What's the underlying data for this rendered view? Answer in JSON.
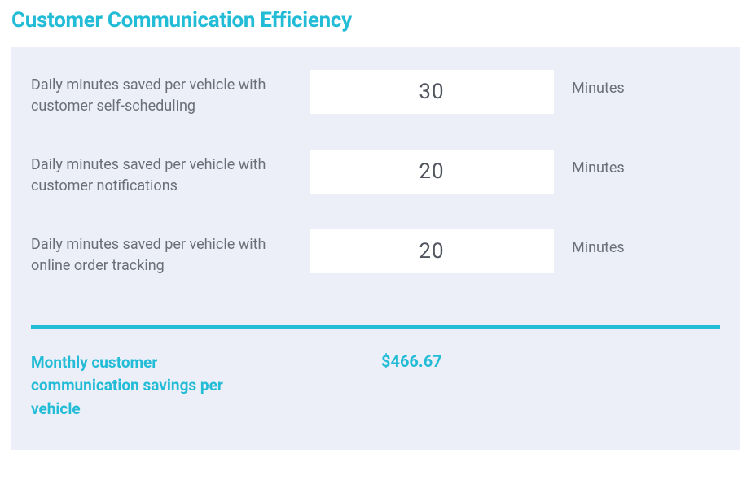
{
  "title": "Customer Communication Efficiency",
  "rows": [
    {
      "label": "Daily minutes saved per vehicle with customer self-scheduling",
      "value": "30",
      "unit": "Minutes"
    },
    {
      "label": "Daily minutes saved per vehicle with customer notifications",
      "value": "20",
      "unit": "Minutes"
    },
    {
      "label": "Daily minutes saved per vehicle with online order tracking",
      "value": "20",
      "unit": "Minutes"
    }
  ],
  "summary": {
    "label": "Monthly customer communication savings per vehicle",
    "value": "$466.67"
  },
  "colors": {
    "accent": "#23bcd6",
    "panel_bg": "#eceff7",
    "text_muted": "#6a6f7a",
    "value_text": "#50555e",
    "value_bg": "#ffffff"
  }
}
